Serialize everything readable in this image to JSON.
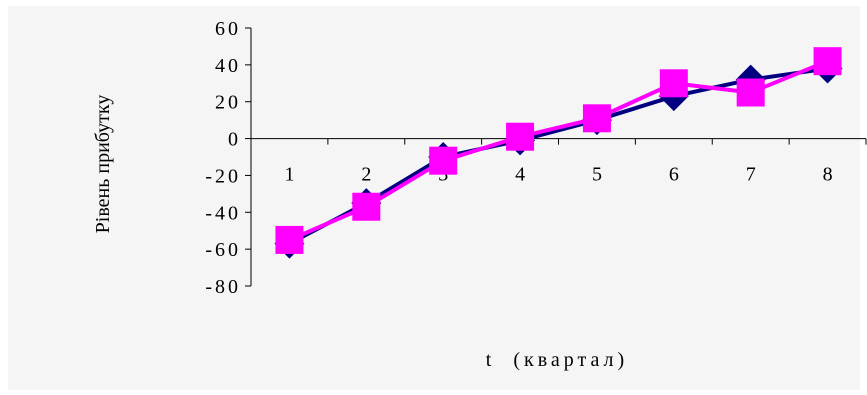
{
  "chart_data": {
    "type": "line",
    "title": "",
    "xlabel": "t  (квартал)",
    "ylabel": "Рівень прибутку",
    "categories": [
      "1",
      "2",
      "3",
      "4",
      "5",
      "6",
      "7",
      "8"
    ],
    "y_ticks": [
      "60",
      "40",
      "20",
      "0",
      "-20",
      "-40",
      "-60",
      "-80"
    ],
    "y_tick_values": [
      60,
      40,
      20,
      0,
      -20,
      -40,
      -60,
      -80
    ],
    "ylim": [
      -80,
      60
    ],
    "grid": false,
    "legend": "none",
    "series": [
      {
        "values": [
          -57,
          -35,
          -10,
          -1,
          10,
          23,
          32,
          38
        ],
        "color": "#000080",
        "marker": "diamond"
      },
      {
        "values": [
          -55,
          -37,
          -12,
          1,
          11,
          30,
          25,
          42
        ],
        "color": "#ff00ff",
        "marker": "square"
      }
    ]
  }
}
